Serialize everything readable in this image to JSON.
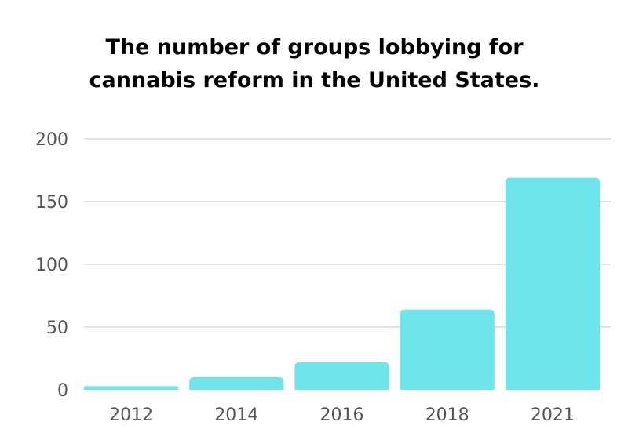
{
  "title_lines": [
    "The number of groups lobbying for",
    "cannabis reform in the United States."
  ],
  "colors": {
    "bar": "#6ee5ea",
    "grid": "#d9d9d9",
    "axis_text": "#555555",
    "title": "#000000"
  },
  "chart_data": {
    "type": "bar",
    "title": "The number of groups lobbying for cannabis reform in the United States.",
    "categories": [
      "2012",
      "2014",
      "2016",
      "2018",
      "2021"
    ],
    "values": [
      3,
      10,
      22,
      64,
      169
    ],
    "ylim": [
      0,
      200
    ],
    "yticks": [
      0,
      50,
      100,
      150,
      200
    ],
    "grid": true,
    "legend": "none"
  }
}
